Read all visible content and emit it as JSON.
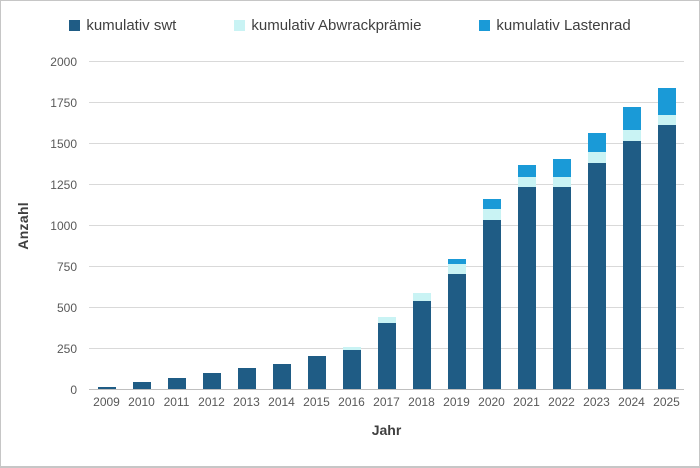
{
  "legend": {
    "items": [
      {
        "label": "kumulativ swt",
        "color": "#1F5C85"
      },
      {
        "label": "kumulativ Abwrackprämie",
        "color": "#C9F3F4"
      },
      {
        "label": "kumulativ Lastenrad",
        "color": "#1A9AD7"
      }
    ]
  },
  "axes": {
    "y_title": "Anzahl",
    "x_title": "Jahr",
    "y_ticks": [
      0,
      250,
      500,
      750,
      1000,
      1250,
      1500,
      1750,
      2000
    ],
    "y_max": 2000
  },
  "chart_data": {
    "type": "bar",
    "stacked": true,
    "title": "",
    "xlabel": "Jahr",
    "ylabel": "Anzahl",
    "ylim": [
      0,
      2000
    ],
    "grid": true,
    "legend_position": "top",
    "categories": [
      "2009",
      "2010",
      "2011",
      "2012",
      "2013",
      "2014",
      "2015",
      "2016",
      "2017",
      "2018",
      "2019",
      "2020",
      "2021",
      "2022",
      "2023",
      "2024",
      "2025"
    ],
    "series": [
      {
        "name": "kumulativ swt",
        "color": "#1F5C85",
        "values": [
          15,
          40,
          70,
          100,
          130,
          150,
          200,
          240,
          400,
          535,
          700,
          1030,
          1230,
          1230,
          1380,
          1515,
          1610
        ]
      },
      {
        "name": "kumulativ Abwrackprämie",
        "color": "#C9F3F4",
        "values": [
          0,
          0,
          0,
          0,
          0,
          0,
          0,
          15,
          40,
          50,
          60,
          70,
          65,
          65,
          65,
          65,
          60
        ]
      },
      {
        "name": "kumulativ Lastenrad",
        "color": "#1A9AD7",
        "values": [
          0,
          0,
          0,
          0,
          0,
          0,
          0,
          0,
          0,
          0,
          30,
          60,
          70,
          110,
          115,
          140,
          165
        ]
      }
    ]
  },
  "colors": {
    "gridline": "#D9D9D9",
    "zero_line": "#BFBFBF",
    "tick_text": "#595959",
    "title_text": "#3F3F3F",
    "border": "#C6C6C6",
    "background": "#FFFFFF"
  }
}
